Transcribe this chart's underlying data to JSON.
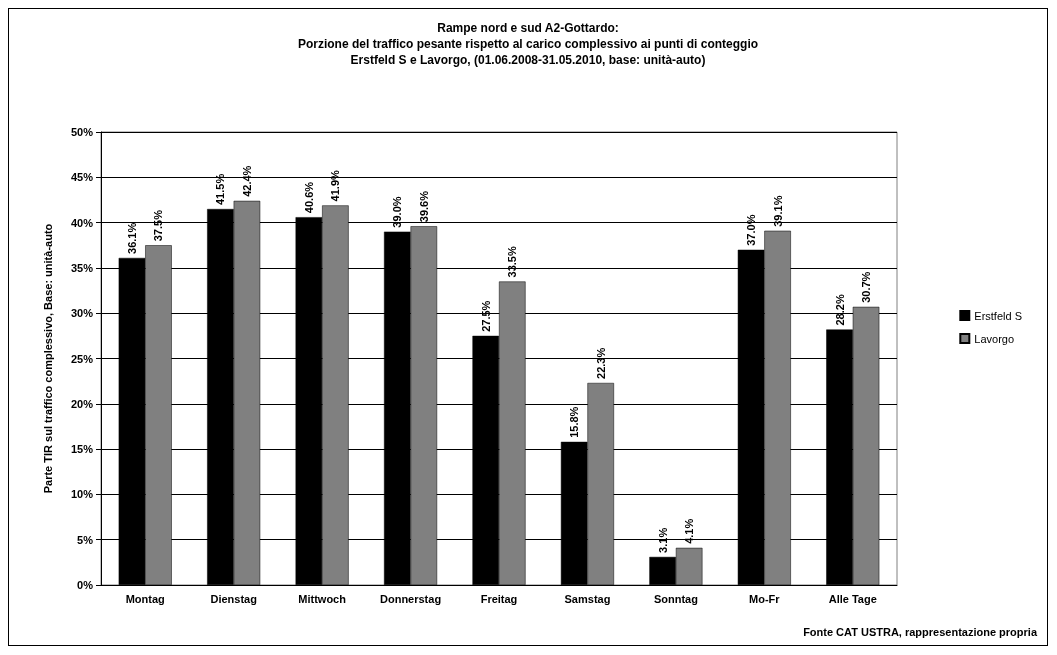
{
  "chart_data": {
    "type": "bar",
    "title": "Rampe nord e sud A2-Gottardo:\nPorzione del traffico pesante rispetto al carico complessivo ai punti di conteggio\nErstfeld S e Lavorgo, (01.06.2008-31.05.2010, base: unità-auto)",
    "ylabel": "Parte TIR sul traffico complessivo, Base: unità-auto",
    "annotations": [
      "Fonte CAT USTRA, rappresentazione propria"
    ],
    "categories": [
      "Montag",
      "Dienstag",
      "Mittwoch",
      "Donnerstag",
      "Freitag",
      "Samstag",
      "Sonntag",
      "Mo-Fr",
      "Alle Tage"
    ],
    "series": [
      {
        "name": "Erstfeld S",
        "color": "#000000",
        "values": [
          36.1,
          41.5,
          40.6,
          39.0,
          27.5,
          15.8,
          3.1,
          37.0,
          28.2
        ],
        "value_labels": [
          "36.1%",
          "41.5%",
          "40.6%",
          "39.0%",
          "27.5%",
          "15.8%",
          "3.1%",
          "37.0%",
          "28.2%"
        ]
      },
      {
        "name": "Lavorgo",
        "color": "#808080",
        "values": [
          37.5,
          42.4,
          41.9,
          39.6,
          33.5,
          22.3,
          4.1,
          39.1,
          30.7
        ],
        "value_labels": [
          "37.5%",
          "42.4%",
          "41.9%",
          "39.6%",
          "33.5%",
          "22.3%",
          "4.1%",
          "39.1%",
          "30.7%"
        ]
      }
    ],
    "ylim": [
      0,
      50
    ],
    "yticks": [
      {
        "value": 0,
        "label": "0%"
      },
      {
        "value": 5,
        "label": "5%"
      },
      {
        "value": 10,
        "label": "10%"
      },
      {
        "value": 15,
        "label": "15%"
      },
      {
        "value": 20,
        "label": "20%"
      },
      {
        "value": 25,
        "label": "25%"
      },
      {
        "value": 30,
        "label": "30%"
      },
      {
        "value": 35,
        "label": "35%"
      },
      {
        "value": 40,
        "label": "40%"
      },
      {
        "value": 45,
        "label": "45%"
      },
      {
        "value": 50,
        "label": "50%"
      }
    ],
    "grid": "y",
    "legend": "right"
  }
}
